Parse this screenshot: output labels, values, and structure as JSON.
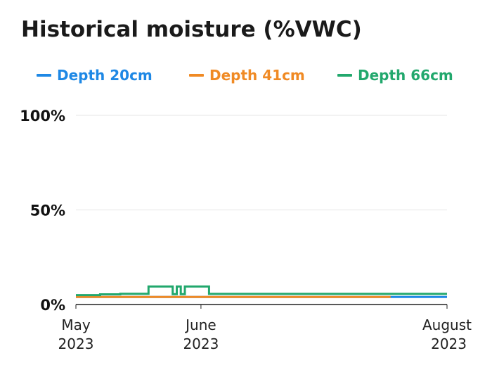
{
  "chart_data": {
    "type": "line",
    "title": "Historical moisture (%VWC)",
    "y_ticks": [
      "100%",
      "50%",
      "0%"
    ],
    "y_tick_values": [
      100,
      50,
      0
    ],
    "ylim": [
      0,
      100
    ],
    "x_ticks": [
      {
        "month": "May",
        "year": "2023",
        "date": "2023-05-01"
      },
      {
        "month": "June",
        "year": "2023",
        "date": "2023-06-01"
      },
      {
        "month": "August",
        "year": "2023",
        "date": "2023-08-01"
      }
    ],
    "xlim": [
      "2023-05-01",
      "2023-08-01"
    ],
    "grid": true,
    "legend_position": "top",
    "series": [
      {
        "name": "Depth 20cm",
        "color": "#1e88e5",
        "points": [
          [
            "2023-05-01",
            4.0
          ],
          [
            "2023-07-18",
            4.0
          ],
          [
            "2023-08-01",
            4.0
          ]
        ]
      },
      {
        "name": "Depth 41cm",
        "color": "#f08a24",
        "points": [
          [
            "2023-05-01",
            4.0
          ],
          [
            "2023-07-18",
            4.0
          ]
        ]
      },
      {
        "name": "Depth 66cm",
        "color": "#22a86d",
        "points": [
          [
            "2023-05-01",
            5.0
          ],
          [
            "2023-05-07",
            5.0
          ],
          [
            "2023-05-07",
            5.4
          ],
          [
            "2023-05-12",
            5.4
          ],
          [
            "2023-05-12",
            5.7
          ],
          [
            "2023-05-19",
            5.7
          ],
          [
            "2023-05-19",
            9.5
          ],
          [
            "2023-05-25",
            9.5
          ],
          [
            "2023-05-25",
            5.5
          ],
          [
            "2023-05-26",
            5.5
          ],
          [
            "2023-05-26",
            9.5
          ],
          [
            "2023-05-27",
            9.5
          ],
          [
            "2023-05-27",
            5.5
          ],
          [
            "2023-05-28",
            5.5
          ],
          [
            "2023-05-28",
            9.5
          ],
          [
            "2023-06-03",
            9.5
          ],
          [
            "2023-06-03",
            5.6
          ],
          [
            "2023-08-01",
            5.6
          ]
        ]
      }
    ]
  }
}
